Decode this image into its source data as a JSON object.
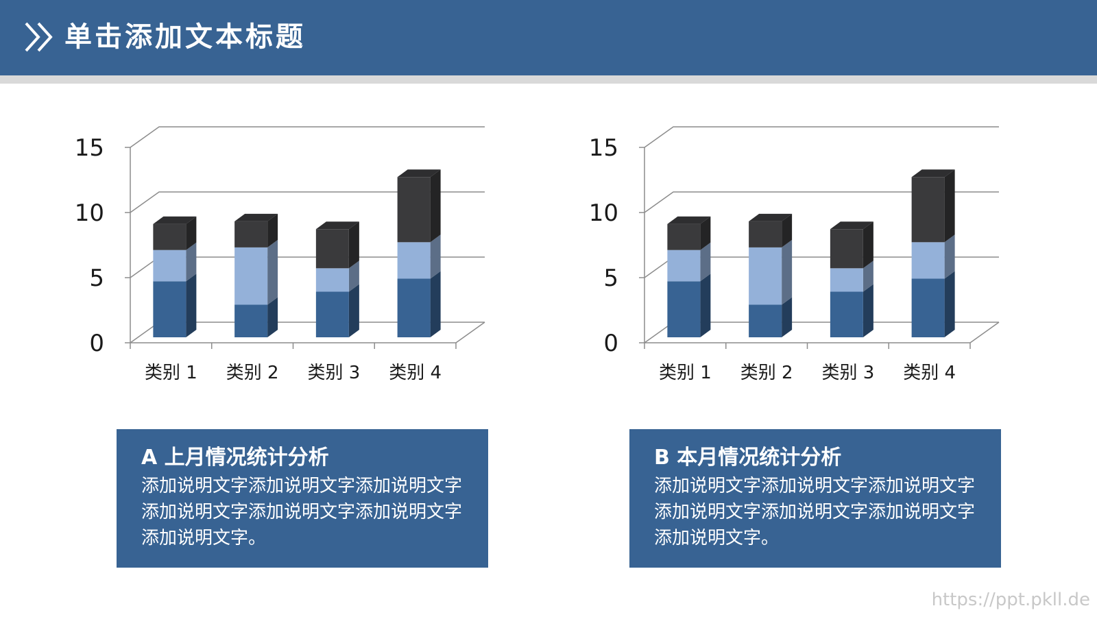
{
  "header": {
    "title": "单击添加文本标题",
    "icon": "double-chevron-right-icon",
    "color": "#386393"
  },
  "chart_data": [
    {
      "type": "bar",
      "stacked": true,
      "style": "3d-column",
      "categories": [
        "类别 1",
        "类别 2",
        "类别 3",
        "类别 4"
      ],
      "series": [
        {
          "values": [
            4.3,
            2.5,
            3.5,
            4.5
          ],
          "color": "#386393"
        },
        {
          "values": [
            2.4,
            4.4,
            1.8,
            2.8
          ],
          "color": "#94b1d9"
        },
        {
          "values": [
            2.0,
            2.0,
            3.0,
            5.0
          ],
          "color": "#3a3a3c"
        }
      ],
      "ylim": [
        0,
        15
      ],
      "yticks": [
        "0",
        "5",
        "10",
        "15"
      ],
      "grid": true,
      "legend": "none"
    },
    {
      "type": "bar",
      "stacked": true,
      "style": "3d-column",
      "categories": [
        "类别 1",
        "类别 2",
        "类别 3",
        "类别 4"
      ],
      "series": [
        {
          "values": [
            4.3,
            2.5,
            3.5,
            4.5
          ],
          "color": "#386393"
        },
        {
          "values": [
            2.4,
            4.4,
            1.8,
            2.8
          ],
          "color": "#94b1d9"
        },
        {
          "values": [
            2.0,
            2.0,
            3.0,
            5.0
          ],
          "color": "#3a3a3c"
        }
      ],
      "ylim": [
        0,
        15
      ],
      "yticks": [
        "0",
        "5",
        "10",
        "15"
      ],
      "grid": true,
      "legend": "none"
    }
  ],
  "boxes": [
    {
      "title": "A 上月情况统计分析",
      "text": "添加说明文字添加说明文字添加说明文字添加说明文字添加说明文字添加说明文字添加说明文字。"
    },
    {
      "title": "B 本月情况统计分析",
      "text": "添加说明文字添加说明文字添加说明文字添加说明文字添加说明文字添加说明文字添加说明文字。"
    }
  ],
  "watermark": "https://ppt.pkll.de"
}
